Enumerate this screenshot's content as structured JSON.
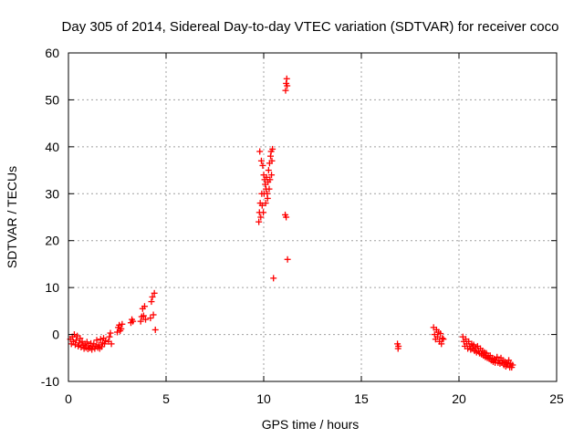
{
  "chart_data": {
    "type": "scatter",
    "title": "Day 305 of 2014, Sidereal Day-to-day VTEC variation (SDTVAR) for receiver coco",
    "xlabel": "GPS time / hours",
    "ylabel": "SDTVAR / TECUs",
    "xlim": [
      0,
      25
    ],
    "ylim": [
      -10,
      60
    ],
    "xticks": [
      "0",
      "5",
      "10",
      "15",
      "20",
      "25"
    ],
    "yticks": [
      "-10",
      "0",
      "10",
      "20",
      "30",
      "40",
      "50",
      "60"
    ],
    "grid": true,
    "marker": "+",
    "color": "#ff0000",
    "series": [
      {
        "name": "SDTVAR",
        "points": [
          [
            0.1,
            -1.0
          ],
          [
            0.15,
            -2.0
          ],
          [
            0.2,
            -0.5
          ],
          [
            0.25,
            -1.5
          ],
          [
            0.3,
            0.0
          ],
          [
            0.35,
            -2.2
          ],
          [
            0.4,
            -1.2
          ],
          [
            0.45,
            -0.3
          ],
          [
            0.5,
            -2.5
          ],
          [
            0.55,
            -1.8
          ],
          [
            0.6,
            -0.8
          ],
          [
            0.65,
            -2.7
          ],
          [
            0.7,
            -1.5
          ],
          [
            0.75,
            -2.3
          ],
          [
            0.8,
            -3.0
          ],
          [
            0.85,
            -2.0
          ],
          [
            0.9,
            -2.8
          ],
          [
            0.95,
            -1.6
          ],
          [
            1.0,
            -3.1
          ],
          [
            1.05,
            -2.4
          ],
          [
            1.1,
            -2.9
          ],
          [
            1.15,
            -1.9
          ],
          [
            1.2,
            -3.2
          ],
          [
            1.25,
            -2.6
          ],
          [
            1.3,
            -2.0
          ],
          [
            1.35,
            -3.0
          ],
          [
            1.4,
            -2.5
          ],
          [
            1.45,
            -1.2
          ],
          [
            1.5,
            -2.8
          ],
          [
            1.55,
            -2.2
          ],
          [
            1.6,
            -3.0
          ],
          [
            1.65,
            -1.0
          ],
          [
            1.7,
            -2.6
          ],
          [
            1.75,
            -1.8
          ],
          [
            1.8,
            -0.8
          ],
          [
            1.85,
            -2.0
          ],
          [
            1.9,
            -1.3
          ],
          [
            2.05,
            -1.5
          ],
          [
            2.1,
            -0.5
          ],
          [
            2.15,
            0.3
          ],
          [
            2.2,
            -2.0
          ],
          [
            2.5,
            0.5
          ],
          [
            2.55,
            1.5
          ],
          [
            2.6,
            2.0
          ],
          [
            2.65,
            0.8
          ],
          [
            2.7,
            1.2
          ],
          [
            2.75,
            2.2
          ],
          [
            3.2,
            2.5
          ],
          [
            3.25,
            3.2
          ],
          [
            3.3,
            2.8
          ],
          [
            3.7,
            2.8
          ],
          [
            3.75,
            3.8
          ],
          [
            3.8,
            5.5
          ],
          [
            3.85,
            4.0
          ],
          [
            3.9,
            6.0
          ],
          [
            3.95,
            3.2
          ],
          [
            4.2,
            3.5
          ],
          [
            4.25,
            7.0
          ],
          [
            4.3,
            8.0
          ],
          [
            4.35,
            4.2
          ],
          [
            4.4,
            8.8
          ],
          [
            4.45,
            1.0
          ],
          [
            9.75,
            24.0
          ],
          [
            9.78,
            26.0
          ],
          [
            9.8,
            39.0
          ],
          [
            9.82,
            28.0
          ],
          [
            9.85,
            25.0
          ],
          [
            9.88,
            37.0
          ],
          [
            9.9,
            30.0
          ],
          [
            9.92,
            27.5
          ],
          [
            9.95,
            36.0
          ],
          [
            9.98,
            26.0
          ],
          [
            10.0,
            34.0
          ],
          [
            10.02,
            30.0
          ],
          [
            10.05,
            33.0
          ],
          [
            10.08,
            32.0
          ],
          [
            10.1,
            28.0
          ],
          [
            10.12,
            31.0
          ],
          [
            10.15,
            33.5
          ],
          [
            10.18,
            30.0
          ],
          [
            10.2,
            29.0
          ],
          [
            10.22,
            32.5
          ],
          [
            10.25,
            35.0
          ],
          [
            10.28,
            31.0
          ],
          [
            10.3,
            36.5
          ],
          [
            10.32,
            33.0
          ],
          [
            10.35,
            38.0
          ],
          [
            10.38,
            39.0
          ],
          [
            10.4,
            34.0
          ],
          [
            10.42,
            37.0
          ],
          [
            10.45,
            39.5
          ],
          [
            10.5,
            12.0
          ],
          [
            11.1,
            25.5
          ],
          [
            11.15,
            25.0
          ],
          [
            11.12,
            52.0
          ],
          [
            11.15,
            53.5
          ],
          [
            11.18,
            54.5
          ],
          [
            11.2,
            53.0
          ],
          [
            11.22,
            16.0
          ],
          [
            16.85,
            -2.0
          ],
          [
            16.88,
            -3.0
          ],
          [
            16.9,
            -2.5
          ],
          [
            18.7,
            1.5
          ],
          [
            18.75,
            0.0
          ],
          [
            18.8,
            -1.0
          ],
          [
            18.85,
            1.0
          ],
          [
            18.9,
            -0.5
          ],
          [
            18.95,
            0.5
          ],
          [
            19.0,
            -1.5
          ],
          [
            19.05,
            0.2
          ],
          [
            19.1,
            -2.0
          ],
          [
            19.15,
            -0.8
          ],
          [
            19.2,
            -1.0
          ],
          [
            20.2,
            -0.5
          ],
          [
            20.25,
            -1.5
          ],
          [
            20.3,
            -2.5
          ],
          [
            20.35,
            -1.0
          ],
          [
            20.4,
            -2.0
          ],
          [
            20.45,
            -3.0
          ],
          [
            20.5,
            -1.5
          ],
          [
            20.55,
            -2.5
          ],
          [
            20.6,
            -3.2
          ],
          [
            20.65,
            -2.0
          ],
          [
            20.7,
            -3.0
          ],
          [
            20.75,
            -2.2
          ],
          [
            20.8,
            -3.5
          ],
          [
            20.85,
            -2.8
          ],
          [
            20.9,
            -3.8
          ],
          [
            20.95,
            -2.5
          ],
          [
            21.0,
            -3.5
          ],
          [
            21.05,
            -4.0
          ],
          [
            21.1,
            -3.0
          ],
          [
            21.15,
            -4.2
          ],
          [
            21.2,
            -3.5
          ],
          [
            21.25,
            -4.5
          ],
          [
            21.3,
            -3.8
          ],
          [
            21.35,
            -4.8
          ],
          [
            21.4,
            -4.0
          ],
          [
            21.45,
            -5.0
          ],
          [
            21.5,
            -4.5
          ],
          [
            21.55,
            -5.2
          ],
          [
            21.6,
            -4.5
          ],
          [
            21.65,
            -5.5
          ],
          [
            21.7,
            -5.0
          ],
          [
            21.75,
            -5.8
          ],
          [
            21.8,
            -5.2
          ],
          [
            21.85,
            -6.0
          ],
          [
            21.9,
            -5.5
          ],
          [
            21.95,
            -4.8
          ],
          [
            22.0,
            -6.0
          ],
          [
            22.05,
            -5.5
          ],
          [
            22.1,
            -6.2
          ],
          [
            22.15,
            -5.0
          ],
          [
            22.2,
            -6.0
          ],
          [
            22.25,
            -5.5
          ],
          [
            22.3,
            -6.5
          ],
          [
            22.35,
            -5.8
          ],
          [
            22.4,
            -6.8
          ],
          [
            22.45,
            -6.0
          ],
          [
            22.5,
            -6.5
          ],
          [
            22.55,
            -5.5
          ],
          [
            22.6,
            -7.0
          ],
          [
            22.65,
            -6.2
          ],
          [
            22.7,
            -7.0
          ],
          [
            22.75,
            -6.5
          ]
        ]
      }
    ]
  }
}
